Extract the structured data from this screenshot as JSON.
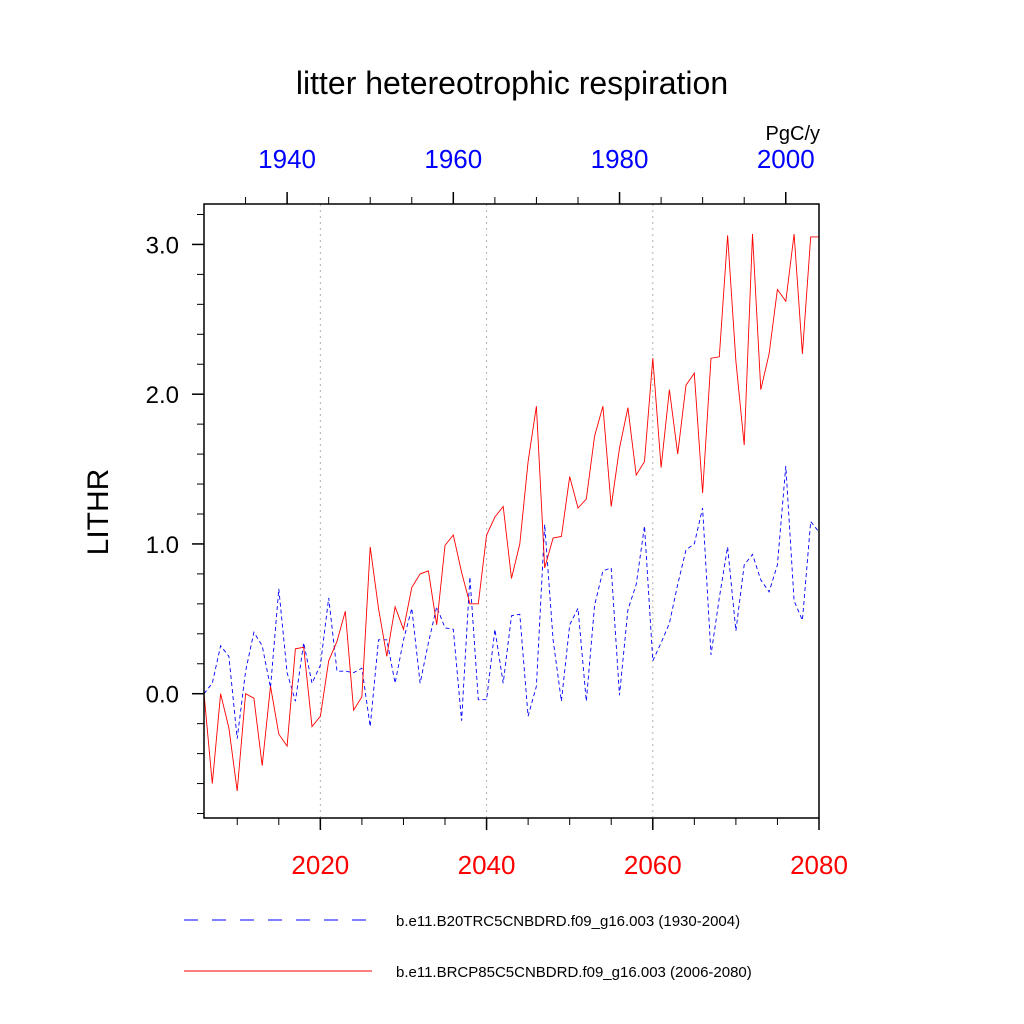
{
  "chart_data": {
    "type": "line",
    "title": "litter hetereotrophic respiration",
    "units": "PgC/y",
    "ylabel": "LITHR",
    "xlabel": "",
    "ylim": [
      -0.83,
      3.27
    ],
    "yticks": [
      0.0,
      1.0,
      2.0,
      3.0
    ],
    "ytick_labels": [
      "0.0",
      "1.0",
      "2.0",
      "3.0"
    ],
    "grid": "vertical dotted lines at labeled bottom-axis years",
    "bottom_axis": {
      "color": "#ff0000",
      "range": [
        2006,
        2080
      ],
      "ticks": [
        2020,
        2040,
        2060,
        2080
      ],
      "tick_labels": [
        "2020",
        "2040",
        "2060",
        "2080"
      ]
    },
    "top_axis": {
      "color": "#0000ff",
      "range": [
        1930,
        2004
      ],
      "ticks": [
        1940,
        1960,
        1980,
        2000
      ],
      "tick_labels": [
        "1940",
        "1960",
        "1980",
        "2000"
      ]
    },
    "legend_placement": "bottom",
    "series": [
      {
        "name": "b.e11.B20TRC5CNBDRD.f09_g16.003 (1930-2004)",
        "color": "#0000ff",
        "dash": "dashed",
        "axis": "top",
        "x_start": 1930,
        "values": [
          0.0,
          0.07,
          0.32,
          0.25,
          -0.3,
          0.15,
          0.41,
          0.32,
          0.04,
          0.7,
          0.14,
          -0.05,
          0.34,
          0.07,
          0.19,
          0.64,
          0.15,
          0.15,
          0.14,
          0.17,
          -0.22,
          0.36,
          0.36,
          0.07,
          0.36,
          0.57,
          0.07,
          0.34,
          0.58,
          0.44,
          0.43,
          -0.18,
          0.78,
          -0.04,
          -0.04,
          0.43,
          0.07,
          0.52,
          0.53,
          -0.15,
          0.05,
          1.13,
          0.36,
          -0.05,
          0.46,
          0.57,
          -0.05,
          0.59,
          0.82,
          0.84,
          -0.01,
          0.56,
          0.73,
          1.12,
          0.22,
          0.34,
          0.47,
          0.73,
          0.96,
          1.0,
          1.24,
          0.26,
          0.64,
          0.98,
          0.42,
          0.86,
          0.93,
          0.76,
          0.68,
          0.86,
          1.52,
          0.62,
          0.49,
          1.15,
          1.08
        ]
      },
      {
        "name": "b.e11.BRCP85C5CNBDRD.f09_g16.003 (2006-2080)",
        "color": "#ff0000",
        "dash": "solid",
        "axis": "bottom",
        "x_start": 2006,
        "values": [
          0.0,
          -0.6,
          0.0,
          -0.23,
          -0.65,
          0.0,
          -0.03,
          -0.48,
          0.05,
          -0.27,
          -0.35,
          0.3,
          0.31,
          -0.22,
          -0.15,
          0.22,
          0.35,
          0.55,
          -0.11,
          -0.02,
          0.98,
          0.57,
          0.25,
          0.58,
          0.43,
          0.71,
          0.8,
          0.82,
          0.46,
          0.99,
          1.06,
          0.81,
          0.6,
          0.6,
          1.06,
          1.18,
          1.25,
          0.77,
          1.0,
          1.55,
          1.92,
          0.84,
          1.04,
          1.05,
          1.45,
          1.24,
          1.3,
          1.72,
          1.92,
          1.25,
          1.64,
          1.91,
          1.46,
          1.55,
          2.24,
          1.51,
          2.03,
          1.6,
          2.06,
          2.14,
          1.34,
          2.24,
          2.25,
          3.06,
          2.22,
          1.66,
          3.07,
          2.03,
          2.27,
          2.7,
          2.62,
          3.07,
          2.27,
          3.05,
          3.05
        ]
      }
    ]
  }
}
